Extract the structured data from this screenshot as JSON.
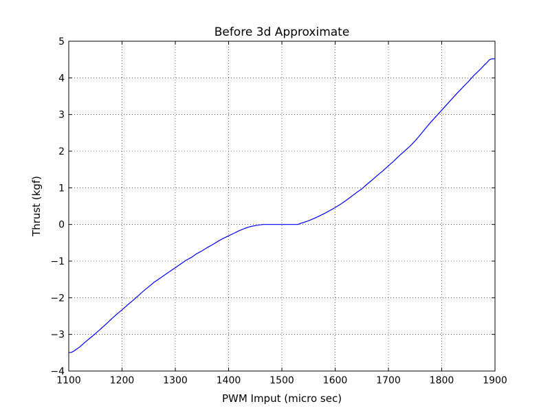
{
  "chart_data": {
    "type": "line",
    "title": "Before 3d Approximate",
    "xlabel": "PWM Imput (micro sec)",
    "ylabel": "Thrust (kgf)",
    "xlim": [
      1100,
      1900
    ],
    "ylim": [
      -4,
      5
    ],
    "xticks": [
      1100,
      1200,
      1300,
      1400,
      1500,
      1600,
      1700,
      1800,
      1900
    ],
    "yticks": [
      -4,
      -3,
      -2,
      -1,
      0,
      1,
      2,
      3,
      4,
      5
    ],
    "xtick_labels": [
      "1100",
      "1200",
      "1300",
      "1400",
      "1500",
      "1600",
      "1700",
      "1800",
      "1900"
    ],
    "ytick_labels": [
      "−4",
      "−3",
      "−2",
      "−1",
      "0",
      "1",
      "2",
      "3",
      "4",
      "5"
    ],
    "grid": true,
    "grid_style": "dotted",
    "line_color": "#0000ff",
    "series": [
      {
        "name": "",
        "x": [
          1100,
          1105,
          1110,
          1120,
          1130,
          1140,
          1150,
          1160,
          1170,
          1180,
          1190,
          1200,
          1210,
          1220,
          1230,
          1240,
          1250,
          1260,
          1270,
          1280,
          1290,
          1300,
          1310,
          1320,
          1330,
          1340,
          1350,
          1360,
          1370,
          1380,
          1390,
          1400,
          1410,
          1420,
          1430,
          1440,
          1450,
          1460,
          1465,
          1470,
          1480,
          1490,
          1500,
          1510,
          1520,
          1530,
          1535,
          1540,
          1550,
          1560,
          1570,
          1580,
          1590,
          1600,
          1610,
          1620,
          1630,
          1640,
          1650,
          1660,
          1670,
          1680,
          1690,
          1700,
          1710,
          1720,
          1730,
          1740,
          1750,
          1760,
          1770,
          1780,
          1790,
          1800,
          1810,
          1820,
          1830,
          1840,
          1850,
          1860,
          1870,
          1880,
          1885,
          1890,
          1895,
          1900
        ],
        "y": [
          -3.5,
          -3.49,
          -3.45,
          -3.35,
          -3.22,
          -3.1,
          -2.98,
          -2.85,
          -2.72,
          -2.58,
          -2.45,
          -2.33,
          -2.2,
          -2.08,
          -1.95,
          -1.82,
          -1.7,
          -1.58,
          -1.48,
          -1.38,
          -1.28,
          -1.18,
          -1.08,
          -0.98,
          -0.9,
          -0.8,
          -0.72,
          -0.63,
          -0.55,
          -0.46,
          -0.38,
          -0.31,
          -0.24,
          -0.17,
          -0.11,
          -0.06,
          -0.03,
          -0.01,
          0.0,
          0.0,
          0.0,
          0.0,
          0.0,
          0.0,
          0.0,
          0.0,
          0.03,
          0.05,
          0.1,
          0.16,
          0.23,
          0.3,
          0.38,
          0.46,
          0.55,
          0.65,
          0.76,
          0.87,
          0.97,
          1.1,
          1.22,
          1.35,
          1.47,
          1.6,
          1.73,
          1.87,
          2.0,
          2.13,
          2.28,
          2.45,
          2.63,
          2.8,
          2.96,
          3.12,
          3.28,
          3.44,
          3.6,
          3.75,
          3.9,
          4.06,
          4.2,
          4.35,
          4.42,
          4.5,
          4.52,
          4.52
        ]
      }
    ]
  }
}
